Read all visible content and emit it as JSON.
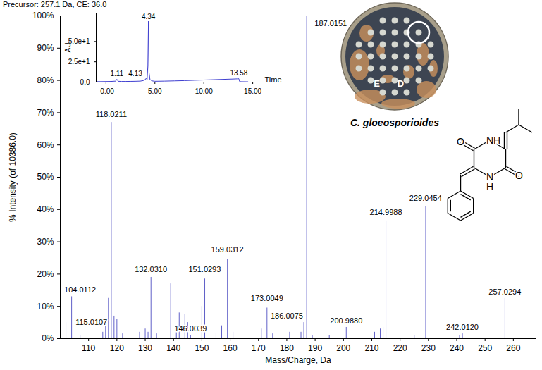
{
  "chart_data": [
    {
      "type": "bar",
      "title": "Precursor: 257.1 Da, CE: 36.0",
      "x_label": "Mass/Charge, Da",
      "y_label": "% Intensity (of 10386.0)",
      "color": "#6060c8",
      "x": [
        102.0,
        104.0112,
        107.0,
        115.0107,
        116.0,
        117.0,
        118.0211,
        119.0,
        120.0,
        122.0,
        128.0,
        130.0,
        131.0,
        132.031,
        134.0,
        139.0,
        141.0,
        142.0,
        144.0,
        145.0,
        146.0039,
        150.0,
        151.0293,
        155.0,
        157.0,
        159.0312,
        161.0,
        171.0,
        173.0049,
        175.0,
        181.0,
        185.0,
        186.0075,
        187.0151,
        189.0,
        195.0,
        200.988,
        211.0,
        213.0,
        214.0,
        214.9988,
        225.0,
        229.0454,
        241.0,
        242.012,
        257.0294
      ],
      "values": [
        5,
        13,
        1,
        2,
        6,
        12.5,
        67,
        7,
        6,
        1.5,
        2,
        3,
        2,
        19,
        1.5,
        17,
        3,
        8,
        7.5,
        5,
        1,
        10,
        18.5,
        1.5,
        4,
        24.5,
        2,
        3,
        9.5,
        1.5,
        2,
        2,
        5,
        100,
        1,
        1,
        3.5,
        2,
        3,
        3.5,
        36.5,
        1,
        41,
        1,
        1.5,
        12.5
      ],
      "xlim": [
        100,
        268
      ],
      "xticks": [
        110,
        120,
        130,
        140,
        150,
        160,
        170,
        180,
        190,
        200,
        210,
        220,
        230,
        240,
        250,
        260
      ],
      "ylim": [
        0,
        100
      ],
      "yticks": [
        {
          "value": 0,
          "label": "0%"
        },
        {
          "value": 10,
          "label": "10%"
        },
        {
          "value": 20,
          "label": "20%"
        },
        {
          "value": 30,
          "label": "30%"
        },
        {
          "value": 40,
          "label": "40%"
        },
        {
          "value": 50,
          "label": "50%"
        },
        {
          "value": 60,
          "label": "60%"
        },
        {
          "value": 70,
          "label": "70%"
        },
        {
          "value": 80,
          "label": "80%"
        },
        {
          "value": 90,
          "label": "90%"
        },
        {
          "value": 100,
          "label": "100%"
        }
      ],
      "grid": false,
      "annotations": [
        {
          "text": "104.0112",
          "x": 107,
          "y": 15
        },
        {
          "text": "115.0107",
          "x": 111,
          "y": 5
        },
        {
          "text": "118.0211",
          "x": 118.0211,
          "y": 69.5
        },
        {
          "text": "132.0310",
          "x": 132,
          "y": 21.5
        },
        {
          "text": "146.0039",
          "x": 146,
          "y": 3
        },
        {
          "text": "151.0293",
          "x": 151,
          "y": 21.5
        },
        {
          "text": "159.0312",
          "x": 159,
          "y": 27.5
        },
        {
          "text": "173.0049",
          "x": 173,
          "y": 12.5
        },
        {
          "text": "186.0075",
          "x": 180,
          "y": 7
        },
        {
          "text": "187.0151",
          "x": 195.5,
          "y": 97.5
        },
        {
          "text": "200.9880",
          "x": 201,
          "y": 5.5
        },
        {
          "text": "214.9988",
          "x": 215,
          "y": 39
        },
        {
          "text": "229.0454",
          "x": 229,
          "y": 43.5
        },
        {
          "text": "242.0120",
          "x": 242,
          "y": 3.5
        },
        {
          "text": "257.0294",
          "x": 257,
          "y": 14.5
        }
      ]
    },
    {
      "type": "line",
      "x_label": "Time",
      "y_label": "AU",
      "color": "#3f3fd0",
      "x": [
        -1,
        -0.5,
        0,
        0.5,
        1.0,
        1.11,
        1.25,
        1.6,
        2,
        2.5,
        3,
        3.5,
        3.8,
        4.0,
        4.13,
        4.2,
        4.28,
        4.34,
        4.4,
        4.5,
        4.7,
        5,
        6,
        7,
        8,
        9,
        10,
        11,
        12,
        13,
        13.4,
        13.58,
        13.65,
        13.8,
        14.5
      ],
      "values": [
        0.6,
        0.6,
        0.7,
        0.8,
        1.2,
        3.5,
        1,
        0.8,
        0.8,
        0.9,
        1,
        1.2,
        1.8,
        3,
        5,
        2.5,
        20,
        75,
        12,
        3,
        1.5,
        1,
        1.2,
        1.5,
        1.8,
        2.2,
        2.6,
        3,
        3.4,
        3.8,
        4,
        4.2,
        0.8,
        0.5,
        0.4
      ],
      "xlim": [
        -1,
        16
      ],
      "xticks": [
        {
          "value": 0,
          "label": "-0.00"
        },
        {
          "value": 5,
          "label": "5.00"
        },
        {
          "value": 10,
          "label": "10.00"
        },
        {
          "value": 15,
          "label": "15.00"
        }
      ],
      "ylim": [
        0,
        85
      ],
      "yticks": [
        {
          "value": 0,
          "label": "0.0"
        },
        {
          "value": 25,
          "label": "2.5e+1"
        },
        {
          "value": 50,
          "label": "5.0e+1"
        }
      ],
      "annotations": [
        {
          "text": "1.11",
          "x": 1.11,
          "y": 10
        },
        {
          "text": "4.13",
          "x": 3.0,
          "y": 10
        },
        {
          "text": "4.34",
          "x": 4.34,
          "y": 80
        },
        {
          "text": "13.58",
          "x": 13.58,
          "y": 11
        }
      ]
    }
  ],
  "image": {
    "caption": "C. gloeosporioides",
    "labels": [
      "E",
      "D"
    ]
  },
  "structure": {
    "atoms": [
      "O",
      "NH",
      "O",
      "N",
      "H"
    ]
  }
}
